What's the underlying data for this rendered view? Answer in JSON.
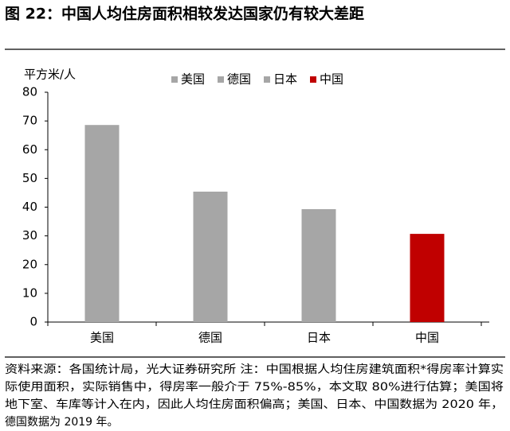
{
  "chart_data": {
    "type": "bar",
    "title": "图 22：中国人均住房面积相较发达国家仍有较大差距",
    "y_label": "平方米/人",
    "categories": [
      "美国",
      "德国",
      "日本",
      "中国"
    ],
    "values": [
      68.6,
      45.4,
      39.3,
      30.7
    ],
    "colors": [
      "#a6a6a6",
      "#a6a6a6",
      "#a6a6a6",
      "#c00000"
    ],
    "ylim": [
      0,
      80
    ],
    "yticks": [
      0,
      10,
      20,
      30,
      40,
      50,
      60,
      70,
      80
    ],
    "note_lines": [
      "资料来源：各国统计局，光大证券研究所 注：中国根据人均住房建筑面积*得房率计算实",
      "际使用面积，实际销售中，得房率一般介于 75%-85%，本文取 80%进行估算；美国将",
      "地下室、车库等计入在内，因此人均住房面积偏高；美国、日本、中国数据为 2020 年，",
      "德国数据为 2019 年。"
    ]
  }
}
